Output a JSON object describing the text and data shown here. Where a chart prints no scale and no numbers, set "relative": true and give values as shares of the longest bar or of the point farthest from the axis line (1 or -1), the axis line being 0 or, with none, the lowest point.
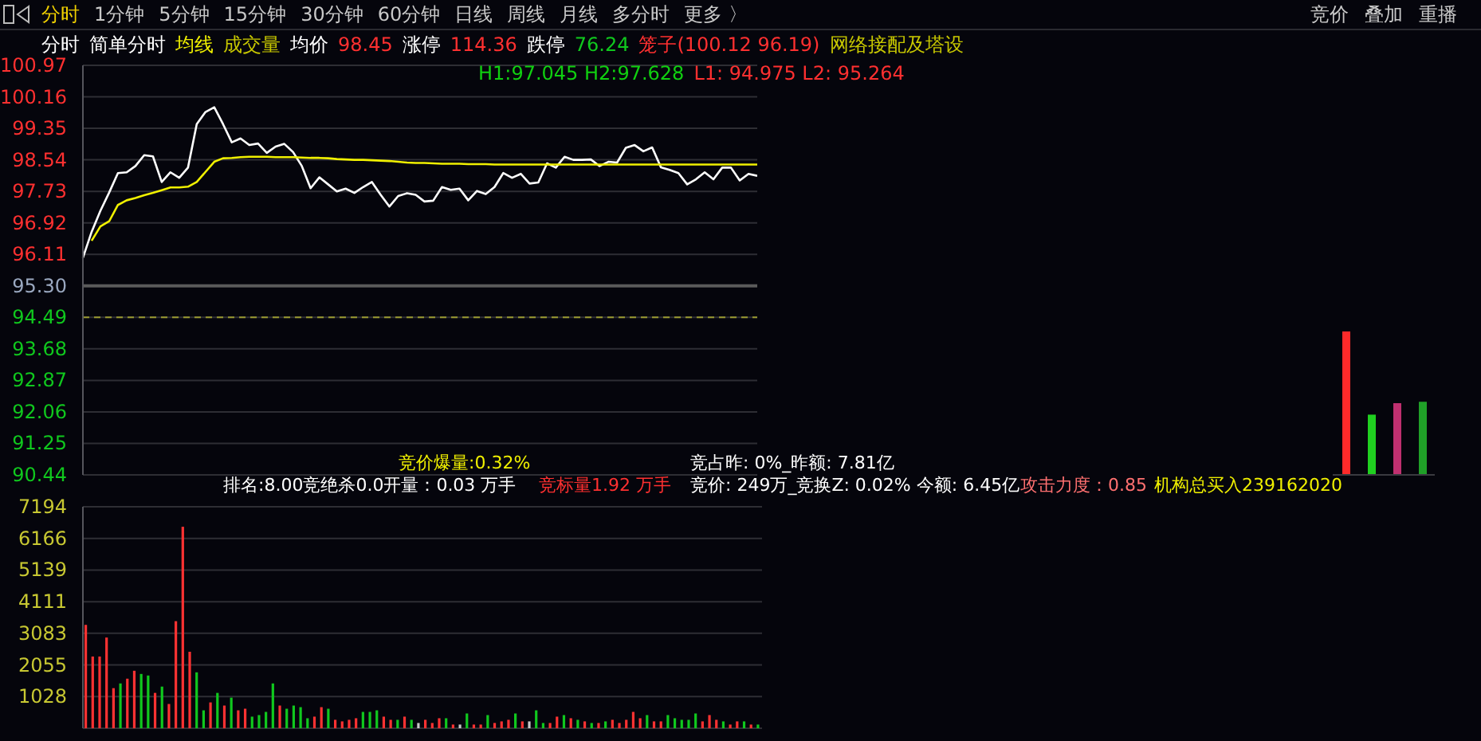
{
  "chart_data": [
    {
      "type": "line",
      "annotations": [
        "分时",
        "1分钟",
        "5分钟",
        "15分钟",
        "30分钟",
        "60分钟",
        "日线",
        "周线",
        "月线",
        "多分时",
        "更多 〉",
        "竞价",
        "叠加",
        "重播",
        "分时",
        "简单分时",
        "均线",
        "成交量",
        "均价",
        "98.45",
        "涨停",
        "114.36",
        "跌停",
        "76.24",
        "笼子(100.12 96.19)",
        "网络接配及塔设",
        "H1:97.045 H2:97.628",
        "L1: 94.975 L2: 95.264"
      ],
      "categories": [
        null,
        null,
        null,
        null,
        null,
        null,
        null,
        null,
        null,
        null,
        null,
        null,
        null,
        null,
        null,
        null,
        null,
        null,
        null,
        null,
        null,
        null,
        null,
        null,
        null,
        null,
        null,
        null,
        null,
        null,
        null,
        null,
        null,
        null,
        null,
        null,
        null,
        null,
        null,
        null,
        null,
        null,
        null,
        null,
        null,
        null,
        null,
        null,
        null,
        null,
        null,
        null,
        null,
        null,
        null,
        null,
        null,
        null,
        null,
        null,
        null,
        null,
        null,
        null,
        null,
        null,
        null,
        null,
        null,
        null,
        null,
        null,
        null,
        null,
        null,
        null,
        null,
        null
      ],
      "ylim": [
        90.44,
        100.97
      ],
      "yticks": [
        90.44,
        91.25,
        92.06,
        92.87,
        93.68,
        94.49,
        {
          "value": 95.3,
          "label": "95.30"
        },
        96.11,
        96.92,
        97.73,
        98.54,
        99.35,
        100.16,
        100.97
      ],
      "tick_labels": "y",
      "grid": "y",
      "marker": "none",
      "ref_lines": [
        {
          "axis": "y",
          "value": 95.3,
          "color": "#5a5a5a"
        },
        {
          "axis": "y",
          "value": 94.49,
          "color": "#9a9a30",
          "line_style": "dashed"
        }
      ],
      "series": [
        {
          "color": "#ffffff",
          "values": [
            96.02,
            96.69,
            97.23,
            97.7,
            98.2,
            98.22,
            98.38,
            98.66,
            98.63,
            97.97,
            98.22,
            98.08,
            98.34,
            99.46,
            99.77,
            99.89,
            99.46,
            98.99,
            99.09,
            98.92,
            98.96,
            98.72,
            98.88,
            98.95,
            98.74,
            98.38,
            97.81,
            98.09,
            97.91,
            97.73,
            97.8,
            97.69,
            97.84,
            97.97,
            97.64,
            97.34,
            97.61,
            97.68,
            97.64,
            97.47,
            97.49,
            97.84,
            97.77,
            97.8,
            97.5,
            97.74,
            97.66,
            97.84,
            98.2,
            98.08,
            98.18,
            97.93,
            97.96,
            98.45,
            98.34,
            98.62,
            98.54,
            98.54,
            98.55,
            98.38,
            98.49,
            98.47,
            98.85,
            98.92,
            98.76,
            98.86,
            98.35,
            98.28,
            98.2,
            97.91,
            98.04,
            98.22,
            98.04,
            98.34,
            98.34,
            98.01,
            98.18,
            98.13
          ]
        },
        {
          "color": "#f0f000",
          "values": [
            null,
            96.46,
            96.83,
            96.96,
            97.38,
            97.5,
            97.56,
            97.63,
            97.69,
            97.76,
            97.83,
            97.83,
            97.85,
            97.97,
            98.23,
            98.49,
            98.58,
            98.59,
            98.61,
            98.62,
            98.62,
            98.62,
            98.61,
            98.61,
            98.61,
            98.6,
            98.59,
            98.59,
            98.58,
            98.56,
            98.55,
            98.54,
            98.54,
            98.53,
            98.52,
            98.51,
            98.49,
            98.47,
            98.46,
            98.46,
            98.45,
            98.44,
            98.44,
            98.44,
            98.43,
            98.43,
            98.43,
            98.42,
            98.42,
            98.42,
            98.42,
            98.42,
            98.42,
            98.42,
            98.42,
            98.42,
            98.42,
            98.42,
            98.42,
            98.42,
            98.42,
            98.42,
            98.42,
            98.42,
            98.42,
            98.42,
            98.42,
            98.42,
            98.42,
            98.42,
            98.42,
            98.42,
            98.42,
            98.42,
            98.42,
            98.42,
            98.42,
            98.42
          ]
        }
      ]
    },
    {
      "type": "bar",
      "categories": [
        null,
        null,
        null,
        null,
        null,
        null,
        null,
        null,
        null,
        null,
        null,
        null,
        null,
        null,
        null,
        null,
        null,
        null,
        null,
        null,
        null,
        null,
        null,
        null,
        null,
        null,
        null,
        null,
        null,
        null,
        null,
        null,
        null,
        null,
        null,
        null,
        null,
        null,
        null,
        null,
        null,
        null,
        null,
        null,
        null,
        null,
        null,
        null,
        null,
        null,
        null,
        null,
        null,
        null,
        null,
        null,
        null,
        null,
        null,
        null,
        null,
        null,
        null,
        null,
        null,
        null,
        null,
        null,
        null,
        null,
        null,
        null,
        null,
        null,
        null,
        null,
        null,
        null,
        null,
        null,
        null,
        null,
        null,
        null,
        null,
        null,
        null,
        null,
        null,
        null,
        null,
        null,
        null,
        null,
        null,
        null,
        null,
        null
      ],
      "values": [
        3357,
        2330,
        2330,
        2946,
        1302,
        1456,
        1610,
        1867,
        1764,
        1713,
        1148,
        1353,
        788,
        3477,
        6544,
        2484,
        1816,
        582,
        839,
        1148,
        737,
        994,
        582,
        634,
        377,
        428,
        531,
        1456,
        737,
        634,
        737,
        685,
        325,
        377,
        685,
        634,
        274,
        223,
        274,
        325,
        531,
        531,
        582,
        377,
        274,
        274,
        377,
        274,
        171,
        274,
        171,
        325,
        325,
        120,
        120,
        480,
        120,
        120,
        428,
        171,
        223,
        274,
        480,
        223,
        223,
        582,
        171,
        171,
        377,
        428,
        325,
        274,
        223,
        171,
        171,
        223,
        274,
        171,
        274,
        531,
        325,
        428,
        223,
        223,
        428,
        325,
        274,
        274,
        480,
        223,
        428,
        274,
        223,
        120,
        223,
        223,
        120,
        120
      ],
      "colors": [
        "#ff3232",
        "#ff3232",
        "#ff3232",
        "#ff3232",
        "#ff3232",
        "#10c81e",
        "#ff3232",
        "#ff3232",
        "#10c81e",
        "#10c81e",
        "#ff3232",
        "#10c81e",
        "#ff3232",
        "#ff3232",
        "#ff3232",
        "#ff3232",
        "#10c81e",
        "#10c81e",
        "#ff3232",
        "#10c81e",
        "#ff3232",
        "#10c81e",
        "#ff3232",
        "#ff3232",
        "#10c81e",
        "#10c81e",
        "#10c81e",
        "#10c81e",
        "#ff3232",
        "#10c81e",
        "#10c81e",
        "#10c81e",
        "#10c81e",
        "#ff3232",
        "#ff3232",
        "#10c81e",
        "#ff3232",
        "#ff3232",
        "#ff3232",
        "#ff3232",
        "#10c81e",
        "#10c81e",
        "#10c81e",
        "#ff3232",
        "#ff3232",
        "#10c81e",
        "#ff3232",
        "#10c81e",
        "#c8c8c8",
        "#ff3232",
        "#ff3232",
        "#ff3232",
        "#10c81e",
        "#ff3232",
        "#c8c8c8",
        "#10c81e",
        "#ff3232",
        "#ff3232",
        "#10c81e",
        "#ff3232",
        "#ff3232",
        "#ff3232",
        "#10c81e",
        "#ff3232",
        "#c8c8c8",
        "#10c81e",
        "#10c81e",
        "#ff3232",
        "#ff3232",
        "#10c81e",
        "#ff3232",
        "#10c81e",
        "#ff3232",
        "#10c81e",
        "#ff3232",
        "#10c81e",
        "#ff3232",
        "#ff3232",
        "#ff3232",
        "#ff3232",
        "#ff3232",
        "#10c81e",
        "#ff3232",
        "#ff3232",
        "#10c81e",
        "#10c81e",
        "#10c81e",
        "#10c81e",
        "#10c81e",
        "#ff3232",
        "#ff3232",
        "#ff3232",
        "#10c81e",
        "#ff3232",
        "#ff3232",
        "#10c81e",
        "#ff3232",
        "#10c81e"
      ],
      "ylim": [
        0,
        7194
      ],
      "yticks": [
        1028,
        2055,
        3083,
        4111,
        5139,
        6166,
        7194
      ],
      "tick_labels": "y",
      "grid": "y"
    },
    {
      "type": "bar",
      "relative": true,
      "categories": [
        null,
        null,
        null,
        null
      ],
      "values": [
        1,
        0.42,
        0.5,
        0.51
      ],
      "colors": [
        "#ff2a2a",
        "#20d020",
        "#c03070",
        "#20a028"
      ],
      "annotations": [
        "竞价爆量:0.32%",
        "竞占昨: 0%_昨额: 7.81亿",
        "排名:8.00竞绝杀0.0开量：0.03 万手",
        "竞标量1.92 万手",
        "竞价: 249万_竞换Z: 0.02% 今额: 6.45亿",
        "攻击力度：0.85",
        "机构总买入239162020"
      ]
    }
  ]
}
